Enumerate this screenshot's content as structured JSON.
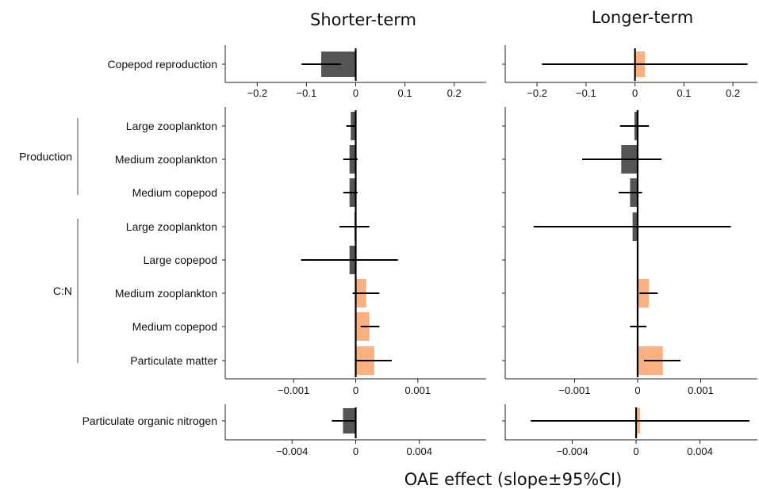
{
  "colors": {
    "positive": "#FDB07F",
    "negative": "#555555",
    "ci": "#000000"
  },
  "chart_data": {
    "type": "bar",
    "orientation": "horizontal",
    "columns": [
      "Shorter-term",
      "Longer-term"
    ],
    "xlabel": "OAE effect (slope±95%CI)",
    "panels": [
      {
        "id": "copepod-reproduction",
        "ticks": [
          -0.2,
          -0.1,
          0,
          0.1,
          0.2
        ],
        "tick_labels": [
          "−0.2",
          "−0.1",
          "0",
          "0.1",
          "0.2"
        ],
        "xlim": {
          "Shorter-term": [
            -0.265,
            0.265
          ],
          "Longer-term": [
            -0.265,
            0.25
          ]
        },
        "rows": [
          {
            "label": "Copepod reproduction",
            "values": {
              "Shorter-term": -0.07,
              "Longer-term": 0.02
            },
            "ci": {
              "Shorter-term": [
                -0.11,
                -0.03
              ],
              "Longer-term": [
                -0.19,
                0.23
              ]
            }
          }
        ]
      },
      {
        "id": "production-cn",
        "ticks": [
          -0.001,
          0,
          0.001
        ],
        "tick_labels": [
          "−0.001",
          "0",
          "0.001"
        ],
        "xlim": {
          "Shorter-term": [
            -0.0021,
            0.0021
          ],
          "Longer-term": [
            -0.0021,
            0.0019
          ]
        },
        "groups": [
          {
            "label": "Production",
            "rows": [
              0,
              2
            ]
          },
          {
            "label": "C:N",
            "rows": [
              3,
              7
            ]
          }
        ],
        "rows": [
          {
            "label": "Large zooplankton",
            "values": {
              "Shorter-term": -8e-05,
              "Longer-term": -5e-05
            },
            "ci": {
              "Shorter-term": [
                -0.00015,
                0.0
              ],
              "Longer-term": [
                -0.00028,
                0.00018
              ]
            }
          },
          {
            "label": "Medium zooplankton",
            "values": {
              "Shorter-term": -0.0001,
              "Longer-term": -0.00026
            },
            "ci": {
              "Shorter-term": [
                -0.0002,
                3e-05
              ],
              "Longer-term": [
                -0.00088,
                0.00038
              ]
            }
          },
          {
            "label": "Medium copepod",
            "values": {
              "Shorter-term": -0.0001,
              "Longer-term": -0.00012
            },
            "ci": {
              "Shorter-term": [
                -0.0002,
                3e-05
              ],
              "Longer-term": [
                -0.0003,
                7e-05
              ]
            }
          },
          {
            "label": "Large zooplankton",
            "values": {
              "Shorter-term": -2e-05,
              "Longer-term": -8e-05
            },
            "ci": {
              "Shorter-term": [
                -0.00026,
                0.00022
              ],
              "Longer-term": [
                -0.00165,
                0.00148
              ]
            }
          },
          {
            "label": "Large copepod",
            "values": {
              "Shorter-term": -0.0001,
              "Longer-term": 0.0
            },
            "ci": {
              "Shorter-term": [
                -0.00088,
                0.00068
              ],
              "Longer-term": [
                0.0,
                0.0
              ]
            }
          },
          {
            "label": "Medium zooplankton",
            "values": {
              "Shorter-term": 0.00017,
              "Longer-term": 0.00018
            },
            "ci": {
              "Shorter-term": [
                -5e-05,
                0.00038
              ],
              "Longer-term": [
                3e-05,
                0.00032
              ]
            }
          },
          {
            "label": "Medium copepod",
            "values": {
              "Shorter-term": 0.00022,
              "Longer-term": 0.0
            },
            "ci": {
              "Shorter-term": [
                8e-05,
                0.00038
              ],
              "Longer-term": [
                -0.00012,
                0.00014
              ]
            }
          },
          {
            "label": "Particulate matter",
            "values": {
              "Shorter-term": 0.0003,
              "Longer-term": 0.0004
            },
            "ci": {
              "Shorter-term": [
                0.0,
                0.00058
              ],
              "Longer-term": [
                0.0001,
                0.00068
              ]
            }
          }
        ]
      },
      {
        "id": "particulate-organic-nitrogen",
        "ticks": [
          -0.004,
          0,
          0.004
        ],
        "tick_labels": [
          "−0.004",
          "0",
          "0.004"
        ],
        "xlim": {
          "Shorter-term": [
            -0.0082,
            0.0082
          ],
          "Longer-term": [
            -0.0082,
            0.0076
          ]
        },
        "rows": [
          {
            "label": "Particulate organic nitrogen",
            "values": {
              "Shorter-term": -0.0008,
              "Longer-term": 0.00025
            },
            "ci": {
              "Shorter-term": [
                -0.0015,
                0.0
              ],
              "Longer-term": [
                -0.0066,
                0.0071
              ]
            }
          }
        ]
      }
    ]
  }
}
